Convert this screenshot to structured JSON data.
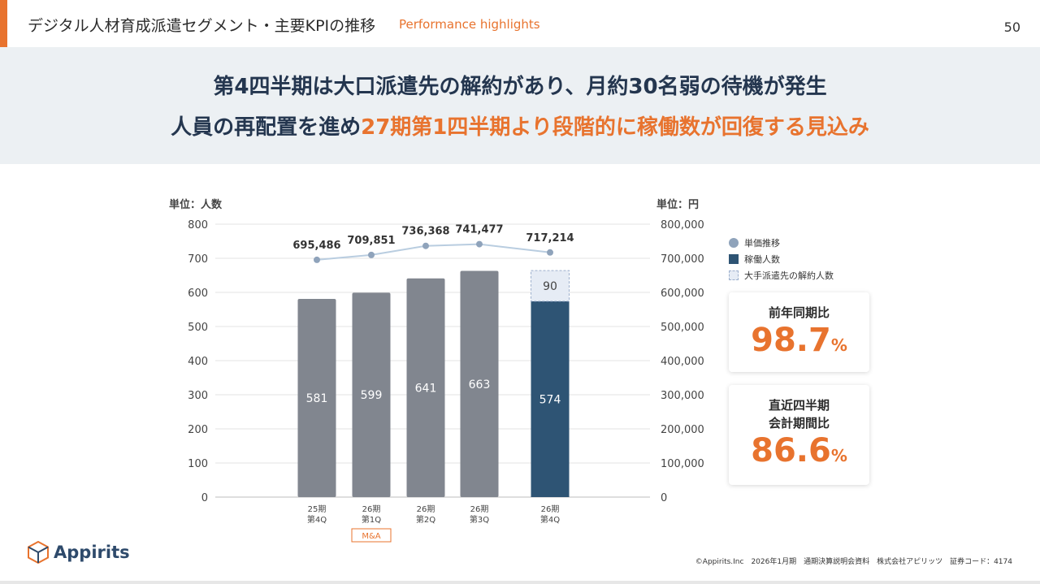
{
  "header": {
    "title": "デジタル人材育成派遣セグメント・主要KPIの推移",
    "subtitle": "Performance highlights",
    "page_number": "50"
  },
  "banner": {
    "line1": "第4四半期は大口派遣先の解約があり、月約30名弱の待機が発生",
    "line2_prefix": "人員の再配置を進め",
    "line2_highlight": "27期第1四半期より段階的に稼働数が回復する見込み"
  },
  "colors": {
    "accent": "#e8732e",
    "navy": "#2e5474",
    "gray_bar": "#81868f",
    "price_line": "#b9cde0",
    "price_dot": "#8fa3bb",
    "banner_bg": "#ecf0f3"
  },
  "chart_data": {
    "type": "bar",
    "left_unit_label": "単位：人数",
    "right_unit_label": "単位：円",
    "categories": [
      [
        "25期",
        "第4Q"
      ],
      [
        "26期",
        "第1Q"
      ],
      [
        "26期",
        "第2Q"
      ],
      [
        "26期",
        "第3Q"
      ],
      [
        "26期",
        "第4Q"
      ]
    ],
    "category_note": {
      "index": 1,
      "text": "M&A"
    },
    "ylim_left": [
      0,
      800
    ],
    "yticks_left": [
      "0",
      "100",
      "200",
      "300",
      "400",
      "500",
      "600",
      "700",
      "800"
    ],
    "ylim_right": [
      0,
      800000
    ],
    "yticks_right": [
      "0",
      "100,000",
      "200,000",
      "300,000",
      "400,000",
      "500,000",
      "600,000",
      "700,000",
      "800,000"
    ],
    "series": [
      {
        "name": "稼働人数",
        "axis": "left",
        "kind": "bar",
        "values": [
          581,
          599,
          641,
          663,
          574
        ]
      },
      {
        "name": "大手派遣先の解約人数",
        "axis": "left",
        "kind": "stacked-dashed",
        "values": [
          null,
          null,
          null,
          null,
          90
        ]
      },
      {
        "name": "単価推移",
        "axis": "right",
        "kind": "line",
        "values": [
          695486,
          709851,
          736368,
          741477,
          717214
        ],
        "labels": [
          "695,486",
          "709,851",
          "736,368",
          "741,477",
          "717,214"
        ]
      }
    ]
  },
  "legend": {
    "items": [
      "単価推移",
      "稼働人数",
      "大手派遣先の解約人数"
    ]
  },
  "kpis": [
    {
      "label_lines": [
        "前年同期比"
      ],
      "value": "98.7",
      "unit": "%"
    },
    {
      "label_lines": [
        "直近四半期",
        "会計期間比"
      ],
      "value": "86.6",
      "unit": "%"
    }
  ],
  "footer": {
    "logo_text": "Appirits",
    "copyright": "©Appirits.Inc　2026年1月期　通期決算説明会資料　株式会社アピリッツ　証券コード：4174"
  }
}
